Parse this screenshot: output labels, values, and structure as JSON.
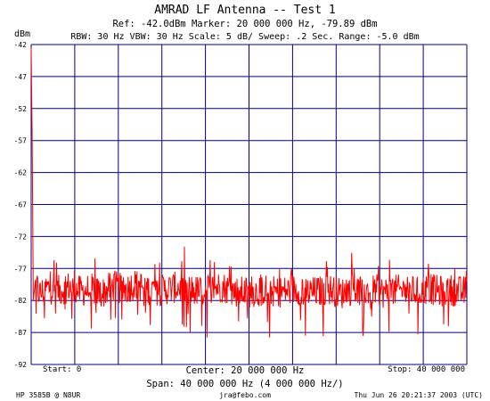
{
  "header": {
    "title": "AMRAD LF Antenna -- Test 1",
    "settings_line_1": "Ref: -42.0dBm   Marker: 20 000 000 Hz, -79.89 dBm",
    "settings_line_2": "RBW: 30 Hz  VBW: 30 Hz  Scale: 5 dB/  Sweep: .2 Sec.  Range: -5.0 dBm"
  },
  "footer": {
    "start": "Start: 0",
    "center": "Center: 20 000 000 Hz",
    "stop": "Stop: 40 000 000",
    "span": "Span: 40 000 000 Hz (4 000 000 Hz/)",
    "instrument": "HP 3585B @ N8UR",
    "email": "jra@febo.com",
    "timestamp": "Thu Jun 26 20:21:37 2003 (UTC)"
  },
  "colors": {
    "grid": "#000080",
    "trace": "#ff0000",
    "text": "#000000",
    "background": "#ffffff"
  },
  "chart_data": {
    "type": "line",
    "title": "AMRAD LF Antenna -- Test 1",
    "ylabel": "dBm",
    "xlabel": "",
    "x_unit": "Hz",
    "xlim": [
      0,
      40000000
    ],
    "ylim": [
      -92,
      -42
    ],
    "y_ticks": [
      -42,
      -47,
      -52,
      -57,
      -62,
      -67,
      -72,
      -77,
      -82,
      -87,
      -92
    ],
    "x_gridlines": 10,
    "y_gridlines": 10,
    "grid": true,
    "legend": "none",
    "marker": {
      "x": 20000000,
      "y": -79.89
    },
    "series": [
      {
        "x": [
          0,
          100000,
          200000,
          400000,
          800000,
          1500000,
          2500000,
          3500000,
          4500000,
          5500000,
          6500000,
          7500000,
          8500000,
          9500000,
          10500000,
          11500000,
          12500000,
          13500000,
          14500000,
          15500000,
          16500000,
          17500000,
          18500000,
          19500000,
          20500000,
          21500000,
          22500000,
          23500000,
          24500000,
          25500000,
          26500000,
          27500000,
          28500000,
          29500000,
          30500000,
          31500000,
          32500000,
          33500000,
          34500000,
          35500000,
          36500000,
          37500000,
          38500000,
          39500000,
          40000000
        ],
        "y": [
          -42.5,
          -58,
          -82,
          -79.5,
          -81,
          -80,
          -80.5,
          -79.8,
          -80.6,
          -80.2,
          -80.9,
          -79.6,
          -80.4,
          -79.4,
          -80.1,
          -80.5,
          -80.2,
          -79.9,
          -80.3,
          -80.6,
          -80.1,
          -79.8,
          -80.5,
          -80.7,
          -80.6,
          -80.3,
          -80.7,
          -80.5,
          -80.2,
          -80.8,
          -80.6,
          -80.3,
          -80.9,
          -80.2,
          -80.5,
          -80.3,
          -80.8,
          -80.4,
          -80.4,
          -80.7,
          -80.1,
          -80.6,
          -80.3,
          -80.7,
          -80.5
        ]
      }
    ]
  }
}
